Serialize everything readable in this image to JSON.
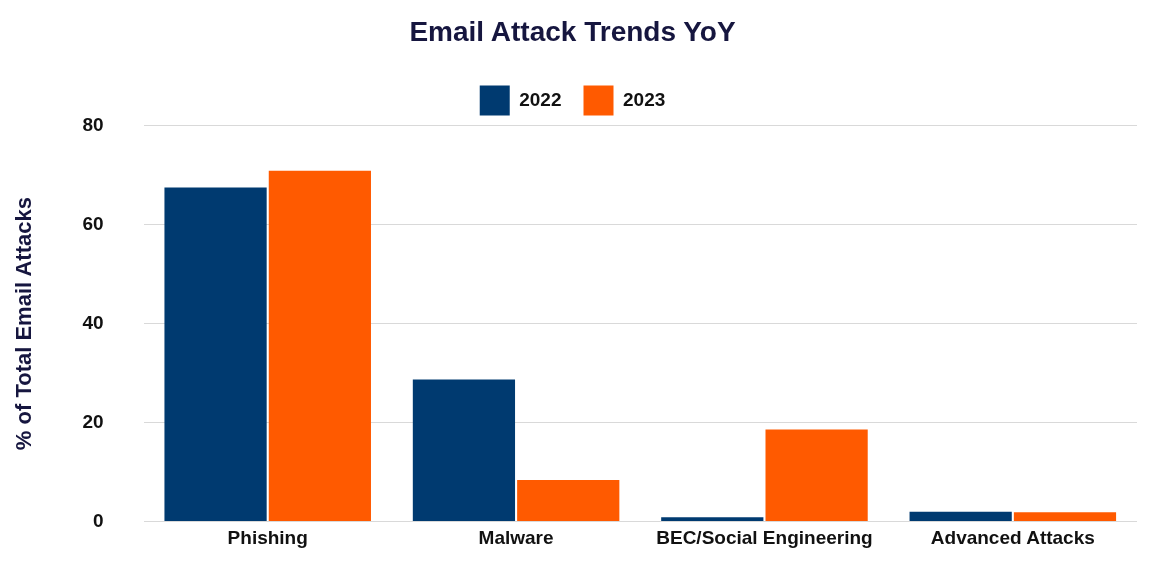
{
  "chart_data": {
    "type": "bar",
    "title": "Email Attack Trends YoY",
    "ylabel": "% of Total Email Attacks",
    "categories": [
      "Phishing",
      "Malware",
      "BEC/Social Engineering",
      "Advanced Attacks"
    ],
    "series": [
      {
        "name": "2022",
        "color": "#003a70",
        "values": [
          67.5,
          28.7,
          0.9,
          2.0
        ]
      },
      {
        "name": "2023",
        "color": "#ff5a00",
        "values": [
          70.9,
          8.4,
          18.6,
          1.9
        ]
      }
    ],
    "ylim": [
      0,
      80
    ],
    "yticks": [
      0,
      20,
      40,
      60,
      80
    ],
    "grid": "y",
    "legend": "top"
  }
}
